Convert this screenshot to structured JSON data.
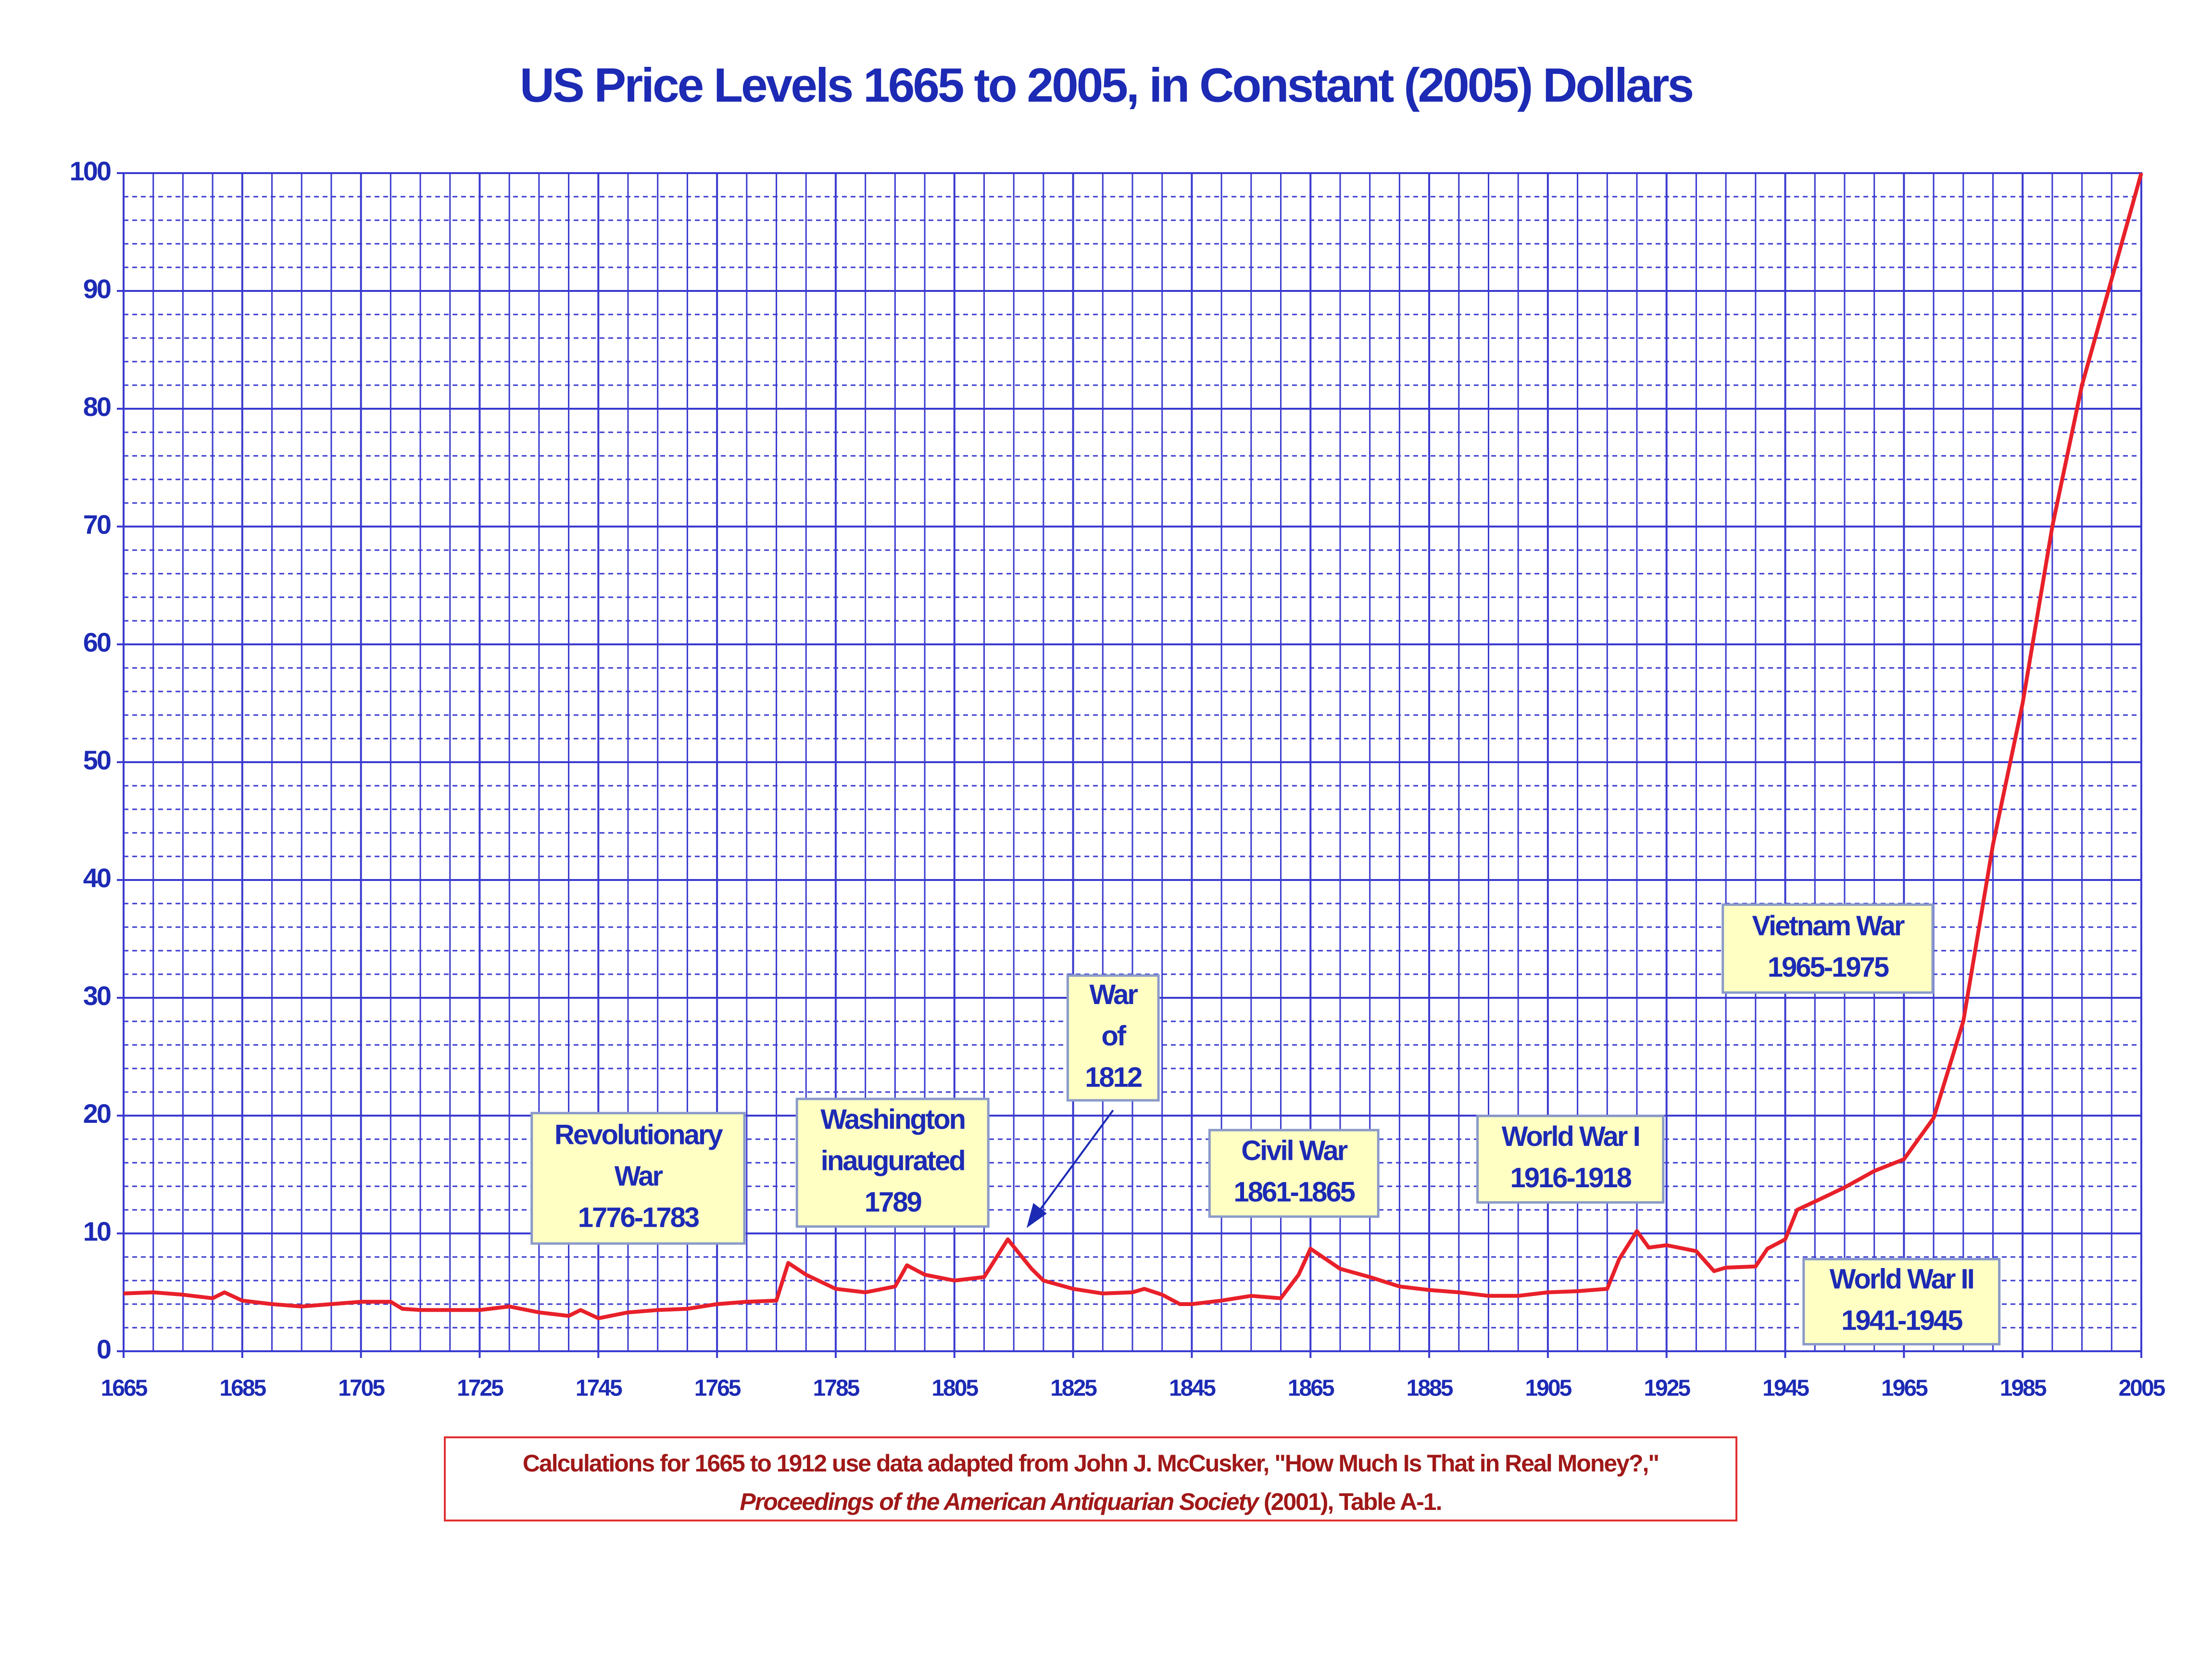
{
  "chart_data": {
    "type": "line",
    "title": "US Price Levels 1665 to 2005, in Constant (2005) Dollars",
    "x": [
      1665,
      1670,
      1675,
      1680,
      1682,
      1685,
      1690,
      1695,
      1700,
      1705,
      1710,
      1712,
      1715,
      1720,
      1725,
      1730,
      1735,
      1740,
      1742,
      1745,
      1750,
      1755,
      1760,
      1765,
      1770,
      1775,
      1777,
      1780,
      1785,
      1790,
      1795,
      1797,
      1800,
      1805,
      1810,
      1814,
      1818,
      1820,
      1825,
      1830,
      1835,
      1837,
      1840,
      1843,
      1845,
      1850,
      1855,
      1860,
      1863,
      1865,
      1870,
      1875,
      1880,
      1885,
      1890,
      1895,
      1900,
      1905,
      1910,
      1915,
      1917,
      1920,
      1922,
      1925,
      1930,
      1933,
      1935,
      1940,
      1942,
      1945,
      1947,
      1950,
      1955,
      1960,
      1965,
      1970,
      1975,
      1980,
      1985,
      1990,
      1995,
      2000,
      2005
    ],
    "values": [
      4.9,
      5.0,
      4.8,
      4.5,
      5.0,
      4.3,
      4.0,
      3.8,
      4.0,
      4.2,
      4.2,
      3.6,
      3.5,
      3.5,
      3.5,
      3.8,
      3.3,
      3.0,
      3.5,
      2.8,
      3.3,
      3.5,
      3.6,
      4.0,
      4.2,
      4.3,
      7.5,
      6.5,
      5.3,
      5.0,
      5.5,
      7.3,
      6.5,
      6.0,
      6.3,
      9.5,
      7.0,
      6.0,
      5.3,
      4.9,
      5.0,
      5.3,
      4.8,
      4.0,
      4.0,
      4.3,
      4.7,
      4.5,
      6.5,
      8.7,
      7.0,
      6.3,
      5.5,
      5.2,
      5.0,
      4.7,
      4.7,
      5.0,
      5.1,
      5.3,
      7.8,
      10.2,
      8.8,
      9.0,
      8.5,
      6.8,
      7.1,
      7.2,
      8.7,
      9.5,
      12.0,
      12.7,
      13.9,
      15.3,
      16.3,
      19.8,
      28.0,
      43.0,
      55.0,
      70.0,
      82.0,
      91.0,
      100.0
    ],
    "color": "#e8202a",
    "xlim": [
      1665,
      2005
    ],
    "xticks": [
      1665,
      1685,
      1705,
      1725,
      1745,
      1765,
      1785,
      1805,
      1825,
      1845,
      1865,
      1885,
      1905,
      1925,
      1945,
      1965,
      1985,
      2005
    ],
    "ylim": [
      0,
      100
    ],
    "yticks": [
      0,
      10,
      20,
      30,
      40,
      50,
      60,
      70,
      80,
      90,
      100
    ],
    "grid": true,
    "annotations": [
      [
        "Revolutionary",
        "War",
        "1776-1783"
      ],
      [
        "Washington",
        "inaugurated",
        "1789"
      ],
      [
        "War",
        "of",
        "1812"
      ],
      [
        "Civil War",
        "1861-1865"
      ],
      [
        "World War I",
        "1916-1918"
      ],
      [
        "Vietnam War",
        "1965-1975"
      ],
      [
        "World War II",
        "1941-1945"
      ]
    ],
    "note": [
      "Calculations for 1665 to 1912 use data adapted from John J. McCusker, \"How Much Is That in Real Money?,\"",
      "Proceedings of the American Antiquarian Society",
      "(2001), Table A-1."
    ]
  }
}
